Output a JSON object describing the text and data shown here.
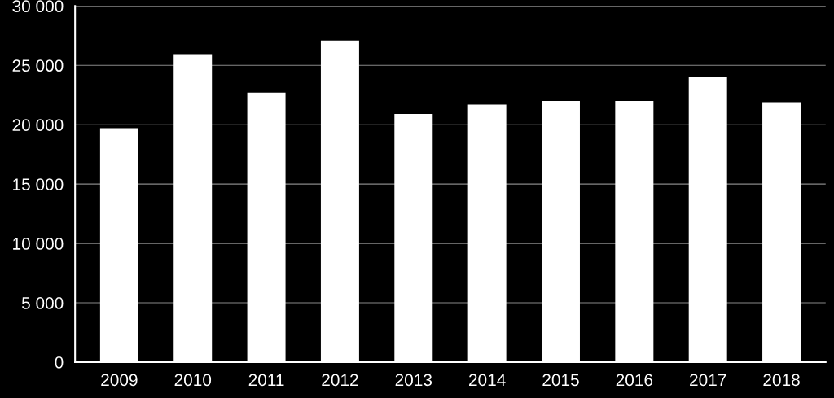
{
  "chart_data": {
    "type": "bar",
    "categories": [
      "2009",
      "2010",
      "2011",
      "2012",
      "2013",
      "2014",
      "2015",
      "2016",
      "2017",
      "2018"
    ],
    "values": [
      19700,
      25950,
      22700,
      27100,
      20900,
      21700,
      22000,
      22000,
      24000,
      21900
    ],
    "color": "#ffffff",
    "ylim": [
      0,
      30000
    ],
    "yticks": [
      0,
      {
        "value": 5000,
        "label": "5 000"
      },
      {
        "value": 10000,
        "label": "10 000"
      },
      {
        "value": 15000,
        "label": "15 000"
      },
      {
        "value": 20000,
        "label": "20 000"
      },
      {
        "value": 25000,
        "label": "25 000"
      },
      {
        "value": 30000,
        "label": "30 000"
      }
    ],
    "grid": "y"
  }
}
